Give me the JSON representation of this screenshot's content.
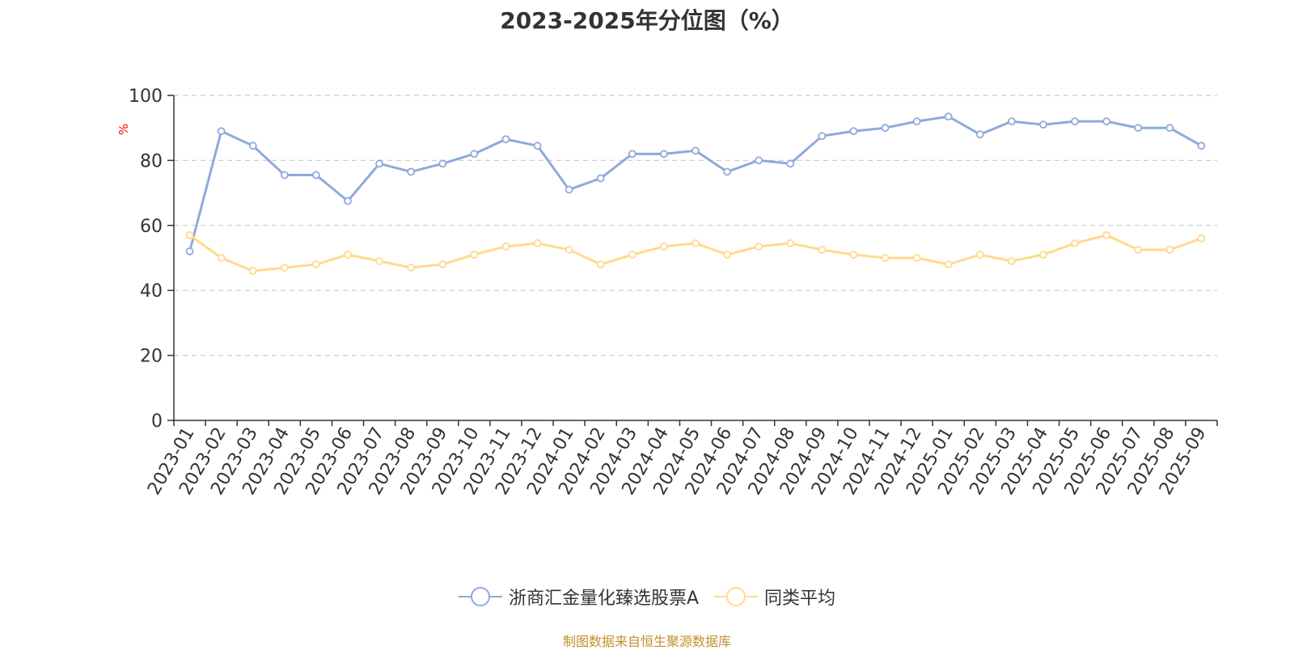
{
  "chart_data": {
    "type": "line",
    "title": "2023-2025年分位图（%）",
    "ylabel": "%",
    "xlabel": "",
    "ylim": [
      0,
      100
    ],
    "yticks": [
      0,
      20,
      40,
      60,
      80,
      100
    ],
    "grid": true,
    "legend_position": "bottom",
    "categories": [
      "2023-01",
      "2023-02",
      "2023-03",
      "2023-04",
      "2023-05",
      "2023-06",
      "2023-07",
      "2023-08",
      "2023-09",
      "2023-10",
      "2023-11",
      "2023-12",
      "2024-01",
      "2024-02",
      "2024-03",
      "2024-04",
      "2024-05",
      "2024-06",
      "2024-07",
      "2024-08",
      "2024-09",
      "2024-10",
      "2024-11",
      "2024-12",
      "2025-01",
      "2025-02",
      "2025-03",
      "2025-04",
      "2025-05",
      "2025-06",
      "2025-07",
      "2025-08",
      "2025-09"
    ],
    "series": [
      {
        "name": "浙商汇金量化臻选股票A",
        "color": "#8eaadb",
        "values": [
          52,
          89,
          84.5,
          75.5,
          75.5,
          67.5,
          79,
          76.5,
          79,
          82,
          86.5,
          84.5,
          71,
          74.5,
          82,
          82,
          83,
          76.5,
          80,
          79,
          87.5,
          89,
          90,
          92,
          93.5,
          88,
          92,
          91,
          92,
          92,
          90,
          90,
          84.5
        ]
      },
      {
        "name": "同类平均",
        "color": "#ffd98e",
        "values": [
          57,
          50,
          46,
          47,
          48,
          51,
          49,
          47,
          48,
          51,
          53.5,
          54.5,
          52.5,
          48,
          51,
          53.5,
          54.5,
          51,
          53.5,
          54.5,
          52.5,
          51,
          50,
          50,
          48,
          51,
          49,
          51,
          54.5,
          57,
          52.5,
          52.5,
          56
        ]
      }
    ]
  },
  "source_text": "制图数据来自恒生聚源数据库"
}
